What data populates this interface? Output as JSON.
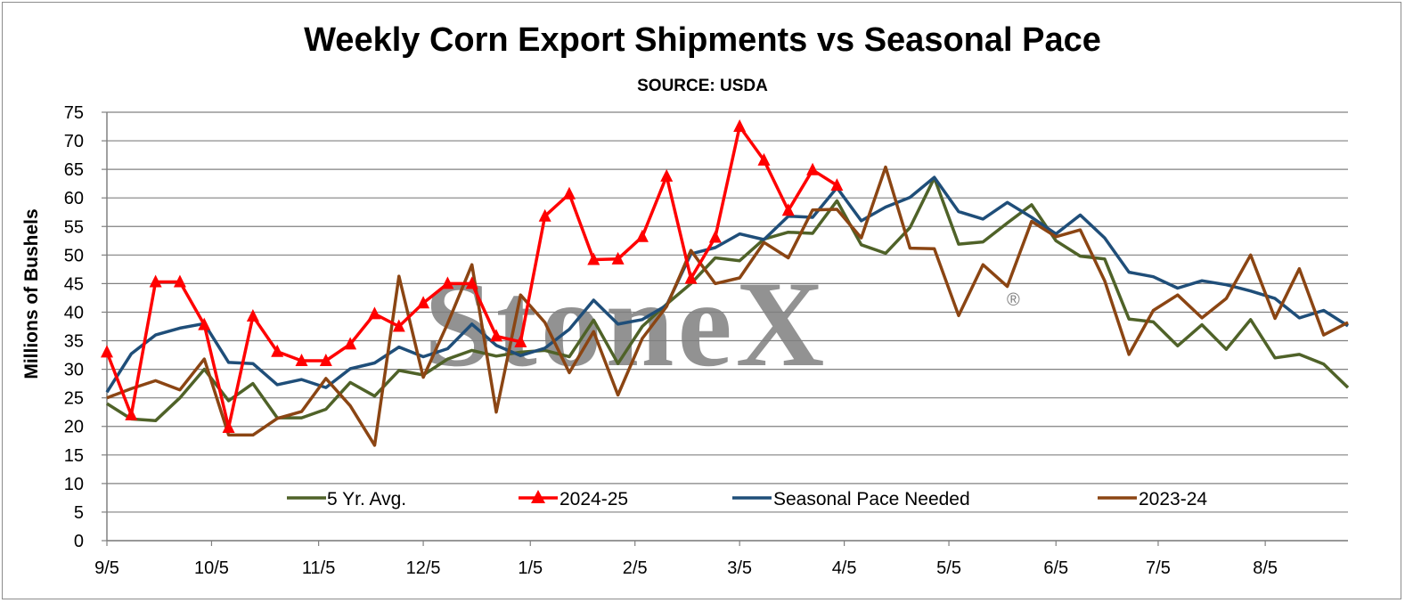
{
  "chart_data": {
    "type": "line",
    "title": "Weekly Corn Export Shipments vs Seasonal Pace",
    "subtitle": "SOURCE: USDA",
    "ylabel": "Millions of Bushels",
    "ylim": [
      0,
      75
    ],
    "y_ticks": [
      "0",
      "5",
      "10",
      "15",
      "20",
      "25",
      "30",
      "35",
      "40",
      "45",
      "50",
      "55",
      "60",
      "65",
      "70",
      "75"
    ],
    "x_tick_labels": [
      "9/5",
      "10/5",
      "11/5",
      "12/5",
      "1/5",
      "2/5",
      "3/5",
      "4/5",
      "5/5",
      "6/5",
      "7/5",
      "8/5"
    ],
    "x_tick_weeks": [
      0,
      4.3,
      8.7,
      13,
      17.4,
      21.7,
      26,
      30.3,
      34.6,
      39,
      43.2,
      47.6
    ],
    "weeks": 52,
    "grid": "horizontal",
    "watermark": "StoneX",
    "watermark_mark": "®",
    "series": [
      {
        "name": "5 Yr. Avg.",
        "color": "#4f6228",
        "marker": "none",
        "values": [
          24,
          21.3,
          21,
          25,
          30,
          24.5,
          27.5,
          21.5,
          21.5,
          23,
          27.7,
          25.3,
          29.8,
          29,
          31.8,
          33.3,
          32.3,
          33,
          33.3,
          32.2,
          38.6,
          31,
          37.5,
          41.4,
          45,
          49.5,
          49,
          52.8,
          54,
          53.8,
          59.5,
          51.8,
          50.3,
          54.8,
          63.5,
          51.9,
          52.3,
          55.6,
          58.8,
          52.5,
          49.8,
          49.3,
          38.8,
          38.3,
          34.1,
          37.8,
          33.5,
          38.7,
          32,
          32.6,
          30.9,
          26.8
        ]
      },
      {
        "name": "2024-25",
        "color": "#ff0000",
        "marker": "triangle",
        "values": [
          33,
          22,
          45.3,
          45.3,
          37.8,
          19.8,
          39.3,
          33.1,
          31.5,
          31.5,
          34.4,
          39.7,
          37.5,
          41.6,
          45,
          45,
          35.8,
          34.8,
          56.8,
          60.7,
          49.2,
          49.3,
          53.2,
          63.8,
          45.9,
          53.1,
          72.5,
          66.6,
          57.8,
          64.9,
          62.2
        ]
      },
      {
        "name": "Seasonal Pace Needed",
        "color": "#1f4e79",
        "marker": "none",
        "values": [
          26,
          32.7,
          36,
          37.2,
          38,
          31.2,
          31,
          27.3,
          28.2,
          26.8,
          30.1,
          31.1,
          33.9,
          32.2,
          33.6,
          37.9,
          34.2,
          32.4,
          33.7,
          37,
          42.1,
          37.9,
          38.7,
          41.2,
          50.2,
          51.3,
          53.7,
          52.7,
          56.8,
          56.6,
          61.8,
          56,
          58.4,
          60.1,
          63.6,
          57.6,
          56.3,
          59.2,
          56.6,
          53.7,
          57,
          53,
          47,
          46.2,
          44.2,
          45.5,
          44.8,
          43.7,
          42.4,
          39,
          40.3,
          37.6
        ]
      },
      {
        "name": "2023-24",
        "color": "#8b4513",
        "marker": "none",
        "values": [
          25,
          26.6,
          28,
          26.4,
          31.8,
          18.5,
          18.5,
          21.4,
          22.6,
          28.4,
          23.6,
          16.7,
          46.3,
          28.6,
          38,
          48.3,
          22.5,
          43,
          38.2,
          29.4,
          36.6,
          25.5,
          35.4,
          41,
          50.8,
          45,
          46,
          52.2,
          49.5,
          57.9,
          58,
          53,
          65.4,
          51.2,
          51.1,
          39.4,
          48.3,
          44.5,
          55.9,
          53.2,
          54.4,
          45.5,
          32.6,
          40.3,
          43,
          39,
          42.4,
          50,
          38.9,
          47.6,
          36,
          38.2
        ]
      }
    ]
  }
}
